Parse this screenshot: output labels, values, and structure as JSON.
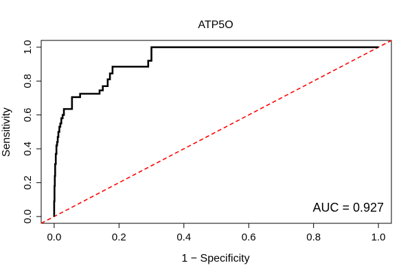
{
  "chart_data": {
    "type": "line",
    "title": "ATP5O",
    "xlabel": "1 − Specificity",
    "ylabel": "Sensitivity",
    "xlim": [
      -0.04,
      1.04
    ],
    "ylim": [
      -0.04,
      1.04
    ],
    "x_ticks": [
      0.0,
      0.2,
      0.4,
      0.6,
      0.8,
      1.0
    ],
    "x_tick_labels": [
      "0.0",
      "0.2",
      "0.4",
      "0.6",
      "0.8",
      "1.0"
    ],
    "y_ticks": [
      0.0,
      0.2,
      0.4,
      0.6,
      0.8,
      1.0
    ],
    "y_tick_labels": [
      "0.0",
      "0.2",
      "0.4",
      "0.6",
      "0.8",
      "1.0"
    ],
    "grid": false,
    "annotation": "AUC = 0.927",
    "series": [
      {
        "color": "#000000",
        "style": "solid",
        "x": [
          0.0,
          0.0,
          0.001,
          0.001,
          0.002,
          0.002,
          0.003,
          0.003,
          0.005,
          0.005,
          0.007,
          0.007,
          0.009,
          0.009,
          0.011,
          0.011,
          0.013,
          0.013,
          0.016,
          0.016,
          0.019,
          0.019,
          0.022,
          0.022,
          0.026,
          0.026,
          0.03,
          0.03,
          0.035,
          0.035,
          0.04,
          0.04,
          0.055,
          0.055,
          0.065,
          0.065,
          0.08,
          0.08,
          0.14,
          0.14,
          0.15,
          0.15,
          0.165,
          0.165,
          0.172,
          0.172,
          0.18,
          0.18,
          0.29,
          0.29,
          0.3,
          0.3,
          1.0
        ],
        "y": [
          0.0,
          0.09,
          0.09,
          0.18,
          0.18,
          0.24,
          0.24,
          0.31,
          0.31,
          0.37,
          0.37,
          0.42,
          0.42,
          0.44,
          0.44,
          0.47,
          0.47,
          0.5,
          0.5,
          0.53,
          0.53,
          0.55,
          0.55,
          0.58,
          0.58,
          0.6,
          0.6,
          0.635,
          0.635,
          0.635,
          0.635,
          0.635,
          0.635,
          0.705,
          0.705,
          0.705,
          0.705,
          0.725,
          0.725,
          0.745,
          0.745,
          0.77,
          0.77,
          0.81,
          0.81,
          0.845,
          0.845,
          0.885,
          0.885,
          0.92,
          0.92,
          1.0,
          1.0
        ]
      },
      {
        "color": "#ff0000",
        "style": "dashed",
        "x": [
          -0.04,
          1.04
        ],
        "y": [
          -0.04,
          1.04
        ]
      }
    ]
  }
}
